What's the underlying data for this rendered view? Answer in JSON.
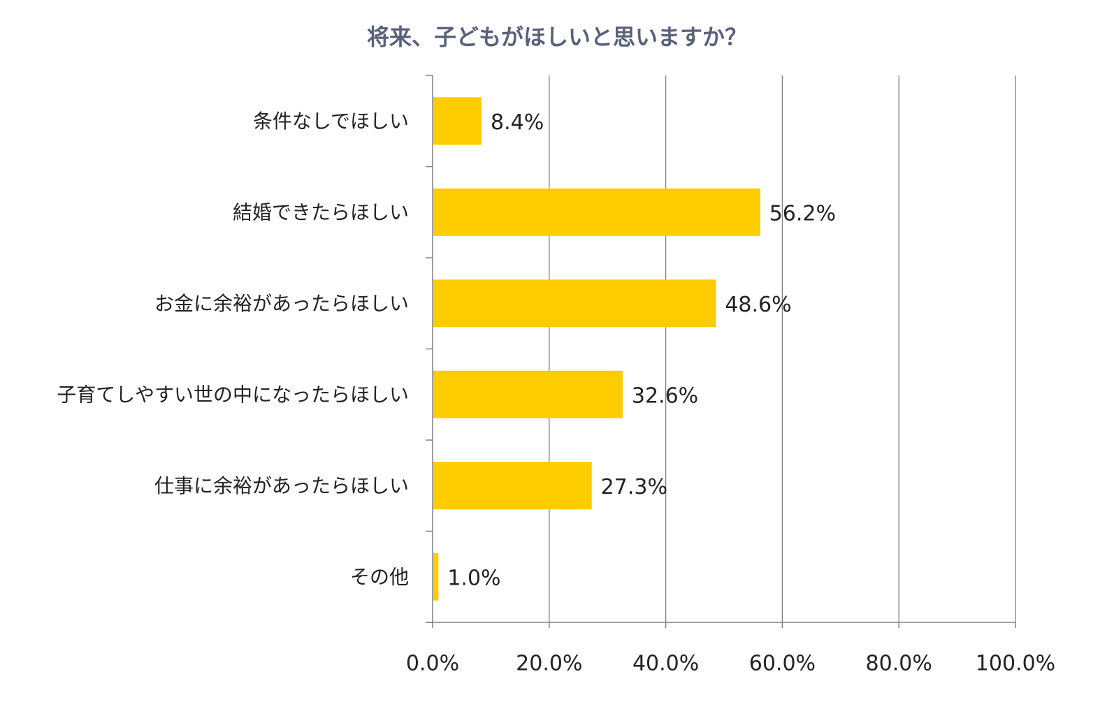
{
  "chart_data": {
    "type": "bar",
    "orientation": "horizontal",
    "title": "将来、子どもがほしいと思いますか？",
    "categories": [
      "条件なしでほしい",
      "結婚できたらほしい",
      "お金に余裕があったらほしい",
      "子育てしやすい世の中になったらほしい",
      "仕事に余裕があったらほしい",
      "その他"
    ],
    "values": [
      8.4,
      56.2,
      48.6,
      32.6,
      27.3,
      1.0
    ],
    "data_labels": [
      "8.4%",
      "56.2%",
      "48.6%",
      "32.6%",
      "27.3%",
      "1.0%"
    ],
    "xlim": [
      0,
      100
    ],
    "xticks": [
      0,
      20,
      40,
      60,
      80,
      100
    ],
    "xtick_labels": [
      "0.0%",
      "20.0%",
      "40.0%",
      "60.0%",
      "80.0%",
      "100.0%"
    ],
    "xlabel": "",
    "ylabel": "",
    "grid": "vertical",
    "legend": "none",
    "colors": {
      "bar": "#FFCC00",
      "grid": "#808080",
      "axis": "#808080",
      "title": "#59617a",
      "text": "#222222"
    }
  }
}
